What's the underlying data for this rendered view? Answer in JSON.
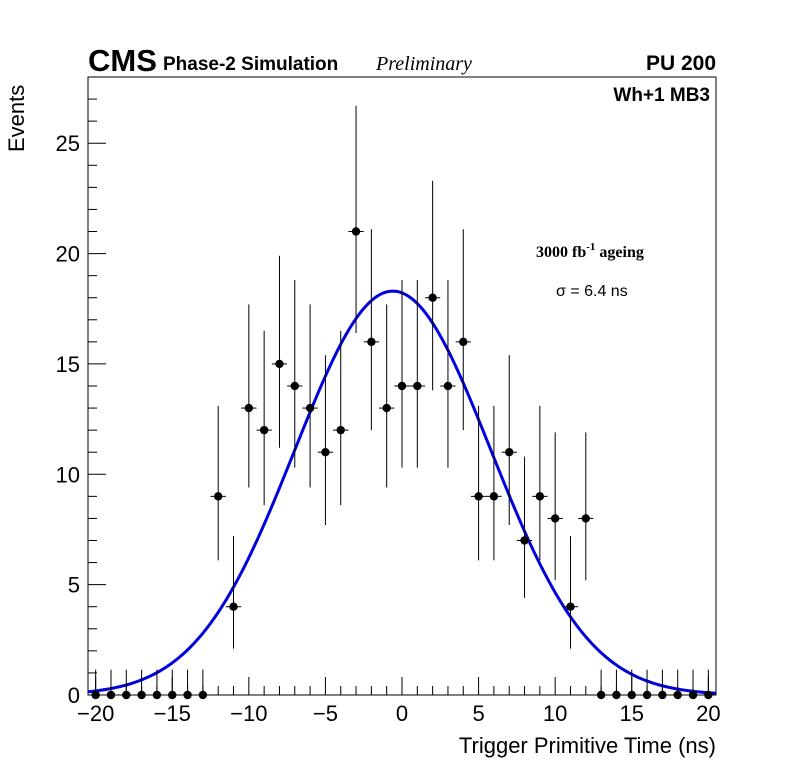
{
  "header": {
    "experiment": "CMS",
    "subtitle": "Phase-2 Simulation",
    "status": "Preliminary",
    "pileup": "PU 200"
  },
  "chart_data": {
    "type": "scatter",
    "title": "",
    "xlabel": "Trigger Primitive Time (ns)",
    "ylabel": "Events",
    "xlim": [
      -20.5,
      20.5
    ],
    "ylim": [
      0,
      28
    ],
    "xticks": [
      -20,
      -15,
      -10,
      -5,
      0,
      5,
      10,
      15,
      20
    ],
    "xtick_labels": [
      "−20",
      "−15",
      "−10",
      "−5",
      "0",
      "5",
      "10",
      "15",
      "20"
    ],
    "yticks": [
      0,
      5,
      10,
      15,
      20,
      25
    ],
    "ytick_labels": [
      "0",
      "5",
      "10",
      "15",
      "20",
      "25"
    ],
    "grid": false,
    "annotations": {
      "chamber": "Wh+1 MB3",
      "ageing_prefix": "3000 fb",
      "ageing_exp": "-1",
      "ageing_suffix": " ageing",
      "sigma": "σ = 6.4 ns"
    },
    "series": [
      {
        "name": "Simulation",
        "style": "points with error bars",
        "color": "#000000",
        "x_error": 0.5,
        "x": [
          -20,
          -19,
          -18,
          -17,
          -16,
          -15,
          -14,
          -13,
          -12,
          -11,
          -10,
          -9,
          -8,
          -7,
          -6,
          -5,
          -4,
          -3,
          -2,
          -1,
          0,
          1,
          2,
          3,
          4,
          5,
          6,
          7,
          8,
          9,
          10,
          11,
          12,
          13,
          14,
          15,
          16,
          17,
          18,
          19,
          20
        ],
        "y": [
          0,
          0,
          0,
          0,
          0,
          0,
          0,
          0,
          9,
          4,
          13,
          12,
          15,
          14,
          13,
          11,
          12,
          21,
          16,
          13,
          14,
          14,
          18,
          14,
          16,
          9,
          9,
          11,
          7,
          9,
          8,
          4,
          8,
          0,
          0,
          0,
          0,
          0,
          0,
          0,
          0
        ],
        "y_err_low": [
          0,
          0,
          0,
          0,
          0,
          0,
          0,
          0,
          2.9,
          1.9,
          3.6,
          3.4,
          3.8,
          3.7,
          3.6,
          3.3,
          3.4,
          4.6,
          4.0,
          3.6,
          3.7,
          3.7,
          4.2,
          3.7,
          4.0,
          2.9,
          2.9,
          3.3,
          2.6,
          2.9,
          2.8,
          1.9,
          2.8,
          0,
          0,
          0,
          0,
          0,
          0,
          0,
          0
        ],
        "y_err_high": [
          1.15,
          1.15,
          1.15,
          1.15,
          1.15,
          1.15,
          1.15,
          1.15,
          4.1,
          3.2,
          4.7,
          4.5,
          4.9,
          4.8,
          4.7,
          4.4,
          4.5,
          5.7,
          5.1,
          4.7,
          4.8,
          4.8,
          5.3,
          4.8,
          5.1,
          4.1,
          4.1,
          4.4,
          3.8,
          4.1,
          3.9,
          3.2,
          3.9,
          1.15,
          1.15,
          1.15,
          1.15,
          1.15,
          1.15,
          1.15,
          1.15
        ]
      },
      {
        "name": "Gaussian fit",
        "style": "line",
        "color": "#0000dd",
        "amplitude": 18.3,
        "mean": -0.6,
        "sigma": 6.4,
        "x_range": [
          -20.5,
          20.5
        ]
      }
    ]
  }
}
